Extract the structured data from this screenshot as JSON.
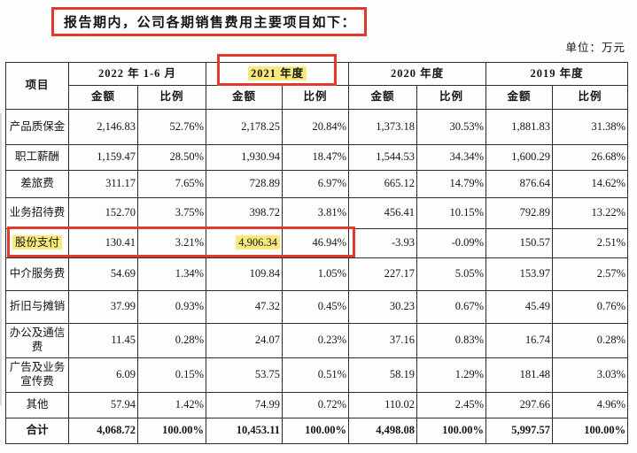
{
  "page": {
    "title": "报告期内，公司各期销售费用主要项目如下：",
    "unit_label": "单位：万元"
  },
  "colors": {
    "annotation_red": "#e13a2c",
    "highlight_yellow": "#f8e97d",
    "table_border": "#2c2c2c"
  },
  "table": {
    "corner_header": "项目",
    "period_headers": [
      {
        "label": "2022 年 1-6 月",
        "highlighted": false
      },
      {
        "label": "2021 年度",
        "highlighted": true
      },
      {
        "label": "2020 年度",
        "highlighted": false
      },
      {
        "label": "2019 年度",
        "highlighted": false
      }
    ],
    "sub_headers": [
      "金额",
      "比例"
    ],
    "rows": [
      {
        "label": "产品质保金",
        "values": [
          "2,146.83",
          "52.76%",
          "2,178.25",
          "20.84%",
          "1,373.18",
          "30.53%",
          "1,881.83",
          "31.38%"
        ]
      },
      {
        "label": "职工薪酬",
        "values": [
          "1,159.47",
          "28.50%",
          "1,930.94",
          "18.47%",
          "1,544.53",
          "34.34%",
          "1,600.29",
          "26.68%"
        ]
      },
      {
        "label": "差旅费",
        "values": [
          "311.17",
          "7.65%",
          "728.89",
          "6.97%",
          "665.12",
          "14.79%",
          "876.64",
          "14.62%"
        ]
      },
      {
        "label": "业务招待费",
        "values": [
          "152.70",
          "3.75%",
          "398.72",
          "3.81%",
          "456.41",
          "10.15%",
          "792.89",
          "13.22%"
        ]
      },
      {
        "label": "股份支付",
        "label_highlight": true,
        "red_boxed": true,
        "highlight_value_indices": [
          2
        ],
        "values": [
          "130.41",
          "3.21%",
          "4,906.34",
          "46.94%",
          "-3.93",
          "-0.09%",
          "150.57",
          "2.51%"
        ]
      },
      {
        "label": "中介服务费",
        "values": [
          "54.69",
          "1.34%",
          "109.84",
          "1.05%",
          "227.17",
          "5.05%",
          "153.97",
          "2.57%"
        ]
      },
      {
        "label": "折旧与摊销",
        "values": [
          "37.99",
          "0.93%",
          "47.32",
          "0.45%",
          "30.23",
          "0.67%",
          "45.49",
          "0.76%"
        ]
      },
      {
        "label": "办公及通信费",
        "values": [
          "11.45",
          "0.28%",
          "24.07",
          "0.23%",
          "37.16",
          "0.83%",
          "16.74",
          "0.28%"
        ]
      },
      {
        "label": "广告及业务宣传费",
        "values": [
          "6.09",
          "0.15%",
          "53.75",
          "0.51%",
          "58.19",
          "1.29%",
          "181.48",
          "3.03%"
        ]
      },
      {
        "label": "其他",
        "values": [
          "57.94",
          "1.42%",
          "74.99",
          "0.72%",
          "110.02",
          "2.45%",
          "297.66",
          "4.96%"
        ]
      },
      {
        "label": "合计",
        "bold": true,
        "values": [
          "4,068.72",
          "100.00%",
          "10,453.11",
          "100.00%",
          "4,498.08",
          "100.00%",
          "5,997.57",
          "100.00%"
        ]
      }
    ]
  }
}
